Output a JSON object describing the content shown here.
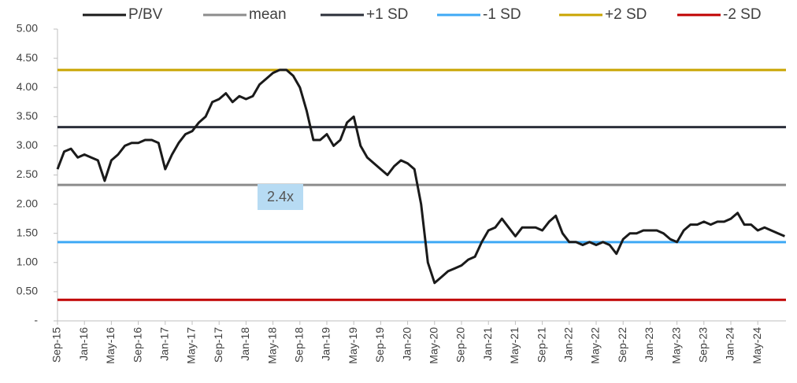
{
  "chart_data": {
    "type": "line",
    "categories": [
      "Sep-15",
      null,
      null,
      null,
      "Jan-16",
      null,
      null,
      null,
      "May-16",
      null,
      null,
      null,
      "Sep-16",
      null,
      null,
      null,
      "Jan-17",
      null,
      null,
      null,
      "May-17",
      null,
      null,
      null,
      "Sep-17",
      null,
      null,
      null,
      "Jan-18",
      null,
      null,
      null,
      "May-18",
      null,
      null,
      null,
      "Sep-18",
      null,
      null,
      null,
      "Jan-19",
      null,
      null,
      null,
      "May-19",
      null,
      null,
      null,
      "Sep-19",
      null,
      null,
      null,
      "Jan-20",
      null,
      null,
      null,
      "May-20",
      null,
      null,
      null,
      "Sep-20",
      null,
      null,
      null,
      "Jan-21",
      null,
      null,
      null,
      "May-21",
      null,
      null,
      null,
      "Sep-21",
      null,
      null,
      null,
      "Jan-22",
      null,
      null,
      null,
      "May-22",
      null,
      null,
      null,
      "Sep-22",
      null,
      null,
      null,
      "Jan-23",
      null,
      null,
      null,
      "May-23",
      null,
      null,
      null,
      "Sep-23",
      null,
      null,
      null,
      "Jan-24",
      null,
      null,
      null,
      "May-24",
      null,
      null,
      null,
      null
    ],
    "series": [
      {
        "name": "P/BV",
        "color": "#1a1a1a",
        "values": [
          2.6,
          2.9,
          2.95,
          2.8,
          2.85,
          2.8,
          2.75,
          2.4,
          2.75,
          2.85,
          3.0,
          3.05,
          3.05,
          3.1,
          3.1,
          3.05,
          2.6,
          2.85,
          3.05,
          3.2,
          3.25,
          3.4,
          3.5,
          3.75,
          3.8,
          3.9,
          3.75,
          3.85,
          3.8,
          3.85,
          4.05,
          4.15,
          4.25,
          4.3,
          4.3,
          4.2,
          4.0,
          3.6,
          3.1,
          3.1,
          3.2,
          3.0,
          3.1,
          3.4,
          3.5,
          3.0,
          2.8,
          2.7,
          2.6,
          2.5,
          2.65,
          2.75,
          2.7,
          2.6,
          2.0,
          1.0,
          0.65,
          0.75,
          0.85,
          0.9,
          0.95,
          1.05,
          1.1,
          1.35,
          1.55,
          1.6,
          1.75,
          1.6,
          1.45,
          1.6,
          1.6,
          1.6,
          1.55,
          1.7,
          1.8,
          1.5,
          1.35,
          1.35,
          1.3,
          1.35,
          1.3,
          1.35,
          1.3,
          1.15,
          1.4,
          1.5,
          1.5,
          1.55,
          1.55,
          1.55,
          1.5,
          1.4,
          1.35,
          1.55,
          1.65,
          1.65,
          1.7,
          1.65,
          1.7,
          1.7,
          1.75,
          1.85,
          1.65,
          1.65,
          1.55,
          1.6,
          1.55,
          1.5,
          1.45
        ]
      },
      {
        "name": "mean",
        "color": "#8c8c8c",
        "value": 2.33
      },
      {
        "name": "+1 SD",
        "color": "#2b2f3a",
        "value": 3.32
      },
      {
        "name": "-1 SD",
        "color": "#3fa9f5",
        "value": 1.35
      },
      {
        "name": "+2 SD",
        "color": "#c9a400",
        "value": 4.3
      },
      {
        "name": "-2 SD",
        "color": "#c00000",
        "value": 0.36
      }
    ],
    "ylim": [
      0,
      5
    ],
    "yticks": [
      {
        "value": 0,
        "label": "-"
      },
      {
        "value": 0.5,
        "label": "0.50"
      },
      {
        "value": 1,
        "label": "1.00"
      },
      {
        "value": 1.5,
        "label": "1.50"
      },
      {
        "value": 2,
        "label": "2.00"
      },
      {
        "value": 2.5,
        "label": "2.50"
      },
      {
        "value": 3,
        "label": "3.00"
      },
      {
        "value": 3.5,
        "label": "3.50"
      },
      {
        "value": 4,
        "label": "4.00"
      },
      {
        "value": 4.5,
        "label": "4.50"
      },
      {
        "value": 5,
        "label": "5.00"
      }
    ],
    "annotation": "2.4x",
    "legend": "top",
    "grid": false
  }
}
